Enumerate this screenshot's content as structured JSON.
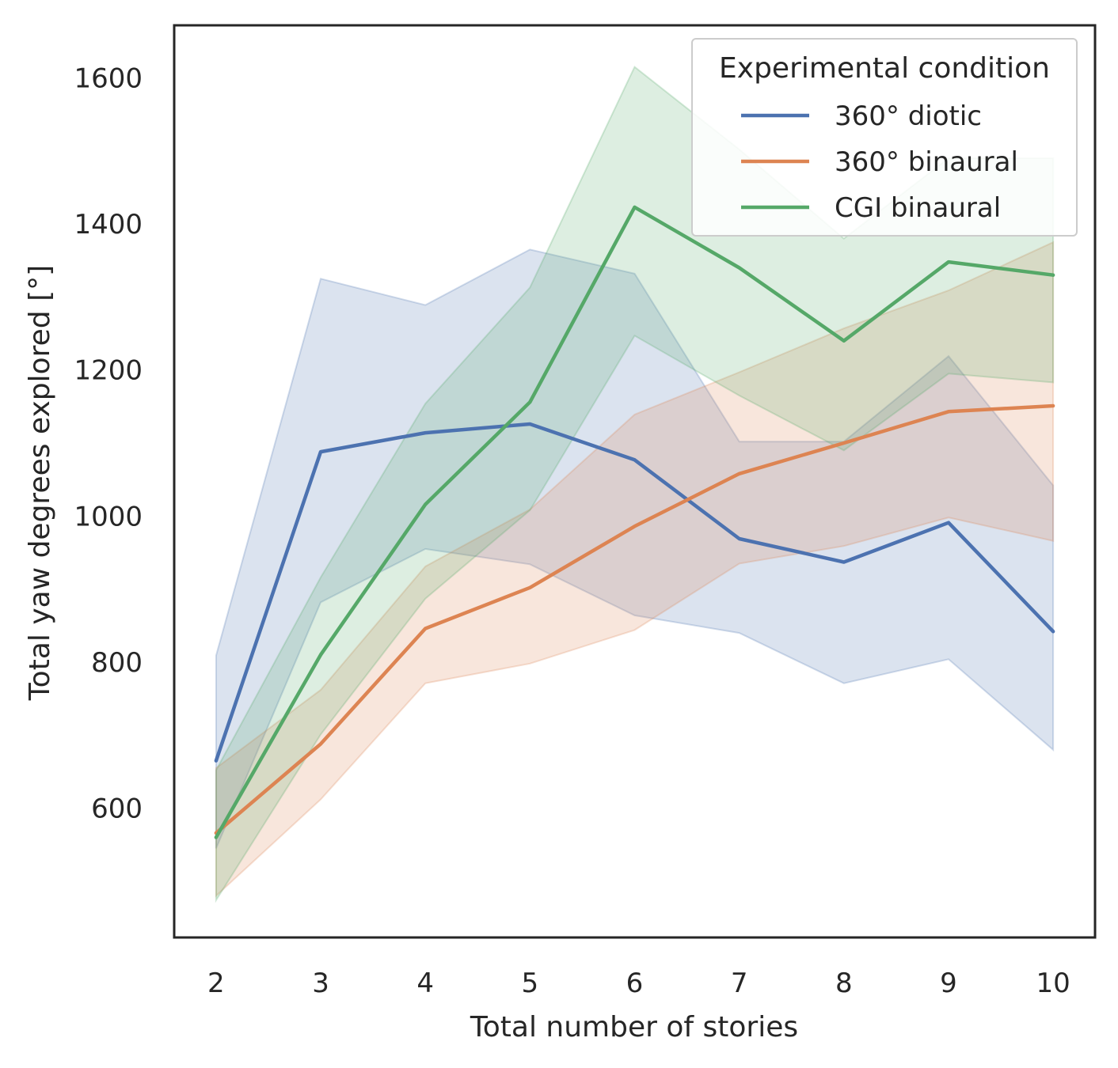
{
  "chart_data": {
    "type": "line",
    "x": [
      2,
      3,
      4,
      5,
      6,
      7,
      8,
      9,
      10
    ],
    "xlabel": "Total number of stories",
    "ylabel": "Total yaw degrees explored [°]",
    "xticks": [
      "2",
      "3",
      "4",
      "5",
      "6",
      "7",
      "8",
      "9",
      "10"
    ],
    "yticks": [
      "600",
      "800",
      "1000",
      "1200",
      "1400",
      "1600"
    ],
    "ytick_values": [
      600,
      800,
      1000,
      1200,
      1400,
      1600
    ],
    "xlim": [
      1.6,
      10.4
    ],
    "ylim": [
      423,
      1672
    ],
    "grid": false,
    "legend": {
      "title": "Experimental condition",
      "placement": "top-right"
    },
    "series": [
      {
        "name": "360° diotic",
        "color": "#4c72b0",
        "values": [
          665,
          1088,
          1114,
          1126,
          1077,
          969,
          937,
          991,
          842
        ],
        "ci_low": [
          545,
          882,
          955,
          934,
          864,
          840,
          771,
          804,
          680
        ],
        "ci_high": [
          809,
          1325,
          1289,
          1365,
          1332,
          1102,
          1102,
          1219,
          1042
        ]
      },
      {
        "name": "360° binaural",
        "color": "#dd8452",
        "values": [
          566,
          688,
          846,
          902,
          986,
          1058,
          1100,
          1143,
          1151
        ],
        "ci_low": [
          480,
          612,
          771,
          798,
          844,
          935,
          959,
          998,
          966
        ],
        "ci_high": [
          655,
          762,
          931,
          1009,
          1139,
          1197,
          1257,
          1309,
          1375
        ]
      },
      {
        "name": "CGI binaural",
        "color": "#55a868",
        "values": [
          560,
          810,
          1016,
          1156,
          1423,
          1340,
          1240,
          1348,
          1330
        ],
        "ci_low": [
          474,
          701,
          887,
          1008,
          1247,
          1165,
          1090,
          1195,
          1183
        ],
        "ci_high": [
          652,
          916,
          1154,
          1313,
          1615,
          1502,
          1380,
          1490,
          1490
        ]
      }
    ]
  }
}
